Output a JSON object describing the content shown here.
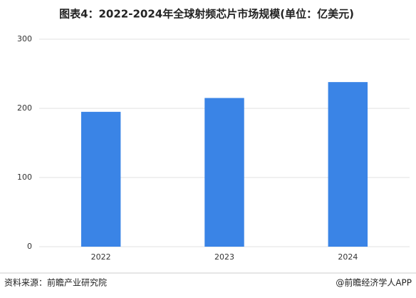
{
  "chart_data": {
    "type": "bar",
    "title": "图表4：2022-2024年全球射频芯片市场规模(单位：亿美元)",
    "categories": [
      "2022",
      "2023",
      "2024"
    ],
    "values": [
      195,
      215,
      238
    ],
    "color": "#3a84e6",
    "ylim": [
      0,
      300
    ],
    "yticks": [
      0,
      100,
      200,
      300
    ],
    "grid": true,
    "source": "资料来源：前瞻产业研究院",
    "credit": "@前瞻经济学人APP"
  }
}
